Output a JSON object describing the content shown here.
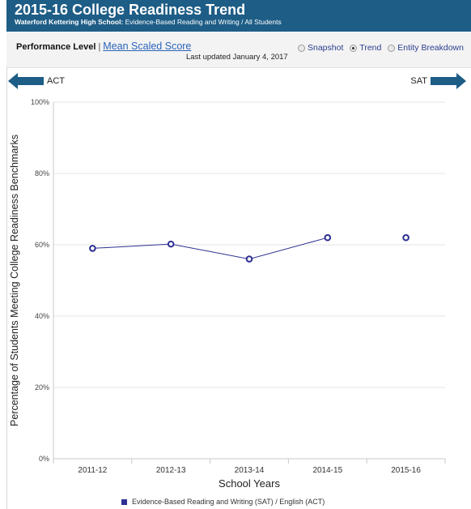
{
  "header": {
    "title": "2015-16 College Readiness Trend",
    "school": "Waterford Kettering High School:",
    "subtitle_rest": "Evidence-Based Reading and Writing / All Students"
  },
  "toolbar": {
    "performance_level": "Performance Level",
    "separator": "|",
    "mean_scaled_score": "Mean Scaled Score",
    "last_updated": "Last updated January 4, 2017",
    "views": [
      {
        "label": "Snapshot",
        "selected": false
      },
      {
        "label": "Trend",
        "selected": true
      },
      {
        "label": "Entity Breakdown",
        "selected": false
      }
    ]
  },
  "nav": {
    "left_label": "ACT",
    "right_label": "SAT",
    "arrow_color": "#1d5d86"
  },
  "colors": {
    "series": "#2d3091",
    "header_bg": "#1d5d86"
  },
  "chart_data": {
    "type": "line",
    "categories": [
      "2011-12",
      "2012-13",
      "2013-14",
      "2014-15",
      "2015-16"
    ],
    "series": [
      {
        "name": "Evidence-Based Reading and Writing (SAT) / English (ACT)",
        "values": [
          59,
          60.2,
          56,
          62,
          62
        ],
        "line_connects_through": "2014-15"
      }
    ],
    "y_ticks": [
      "0%",
      "20%",
      "40%",
      "60%",
      "80%",
      "100%"
    ],
    "ylim": [
      0,
      100
    ],
    "xlabel": "School Years",
    "ylabel": "Percentage of Students Meeting College Readiness Benchmarks",
    "grid": true,
    "legend": "bottom"
  }
}
